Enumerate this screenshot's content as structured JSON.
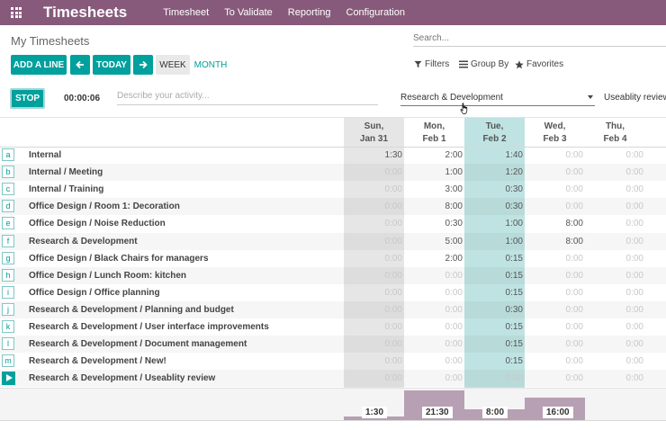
{
  "header": {
    "app_title": "Timesheets",
    "nav": [
      "Timesheet",
      "To Validate",
      "Reporting",
      "Configuration"
    ]
  },
  "control": {
    "breadcrumb": "My Timesheets",
    "search_placeholder": "Search...",
    "add_line": "ADD A LINE",
    "today": "TODAY",
    "week": "WEEK",
    "month": "MONTH",
    "filters": "Filters",
    "group_by": "Group By",
    "favorites": "Favorites"
  },
  "timer": {
    "stop": "STOP",
    "elapsed": "00:00:06",
    "description_placeholder": "Describe your activity...",
    "project": "Research & Development",
    "task": "Useablity review"
  },
  "days": [
    {
      "dow": "Sun,",
      "date": "Jan 31",
      "total": "1:30",
      "total_hours": 1.5
    },
    {
      "dow": "Mon,",
      "date": "Feb 1",
      "total": "21:30",
      "total_hours": 21.5
    },
    {
      "dow": "Tue,",
      "date": "Feb 2",
      "total": "8:00",
      "total_hours": 8.0
    },
    {
      "dow": "Wed,",
      "date": "Feb 3",
      "total": "16:00",
      "total_hours": 16.0
    },
    {
      "dow": "Thu,",
      "date": "Feb 4",
      "total": "",
      "total_hours": 0
    }
  ],
  "rows": [
    {
      "key": "a",
      "label": "Internal",
      "values": [
        "1:30",
        "2:00",
        "1:40",
        "0:00",
        "0:00"
      ]
    },
    {
      "key": "b",
      "label": "Internal  /  Meeting",
      "values": [
        "0:00",
        "1:00",
        "1:20",
        "0:00",
        "0:00"
      ]
    },
    {
      "key": "c",
      "label": "Internal  /  Training",
      "values": [
        "0:00",
        "3:00",
        "0:30",
        "0:00",
        "0:00"
      ]
    },
    {
      "key": "d",
      "label": "Office Design  /  Room 1: Decoration",
      "values": [
        "0:00",
        "8:00",
        "0:30",
        "0:00",
        "0:00"
      ]
    },
    {
      "key": "e",
      "label": "Office Design  /  Noise Reduction",
      "values": [
        "0:00",
        "0:30",
        "1:00",
        "8:00",
        "0:00"
      ]
    },
    {
      "key": "f",
      "label": "Research & Development",
      "values": [
        "0:00",
        "5:00",
        "1:00",
        "8:00",
        "0:00"
      ]
    },
    {
      "key": "g",
      "label": "Office Design  /  Black Chairs for managers",
      "values": [
        "0:00",
        "2:00",
        "0:15",
        "0:00",
        "0:00"
      ]
    },
    {
      "key": "h",
      "label": "Office Design  /  Lunch Room: kitchen",
      "values": [
        "0:00",
        "0:00",
        "0:15",
        "0:00",
        "0:00"
      ]
    },
    {
      "key": "i",
      "label": "Office Design  /  Office planning",
      "values": [
        "0:00",
        "0:00",
        "0:15",
        "0:00",
        "0:00"
      ]
    },
    {
      "key": "j",
      "label": "Research & Development  /  Planning and budget",
      "values": [
        "0:00",
        "0:00",
        "0:30",
        "0:00",
        "0:00"
      ]
    },
    {
      "key": "k",
      "label": "Research & Development  /  User interface improvements",
      "values": [
        "0:00",
        "0:00",
        "0:15",
        "0:00",
        "0:00"
      ]
    },
    {
      "key": "l",
      "label": "Research & Development  /  Document management",
      "values": [
        "0:00",
        "0:00",
        "0:15",
        "0:00",
        "0:00"
      ]
    },
    {
      "key": "m",
      "label": "Research & Development  /  New!",
      "values": [
        "0:00",
        "0:00",
        "0:15",
        "0:00",
        "0:00"
      ]
    },
    {
      "key": "",
      "label": "Research & Development  /  Useablity review",
      "values": [
        "0:00",
        "0:00",
        "0:00",
        "0:00",
        "0:00"
      ],
      "running": true
    }
  ],
  "icons": {
    "apps": "apps-grid-icon",
    "prev": "arrow-left-icon",
    "next": "arrow-right-icon",
    "filter": "filter-icon",
    "group": "list-icon",
    "favorite": "star-icon",
    "play": "play-icon"
  },
  "colors": {
    "brand": "#875a7b",
    "primary": "#00a09d",
    "today_col": "#bfe3e2",
    "weekend_col": "#e6e6e6",
    "total_bar": "#b7a0b3"
  }
}
